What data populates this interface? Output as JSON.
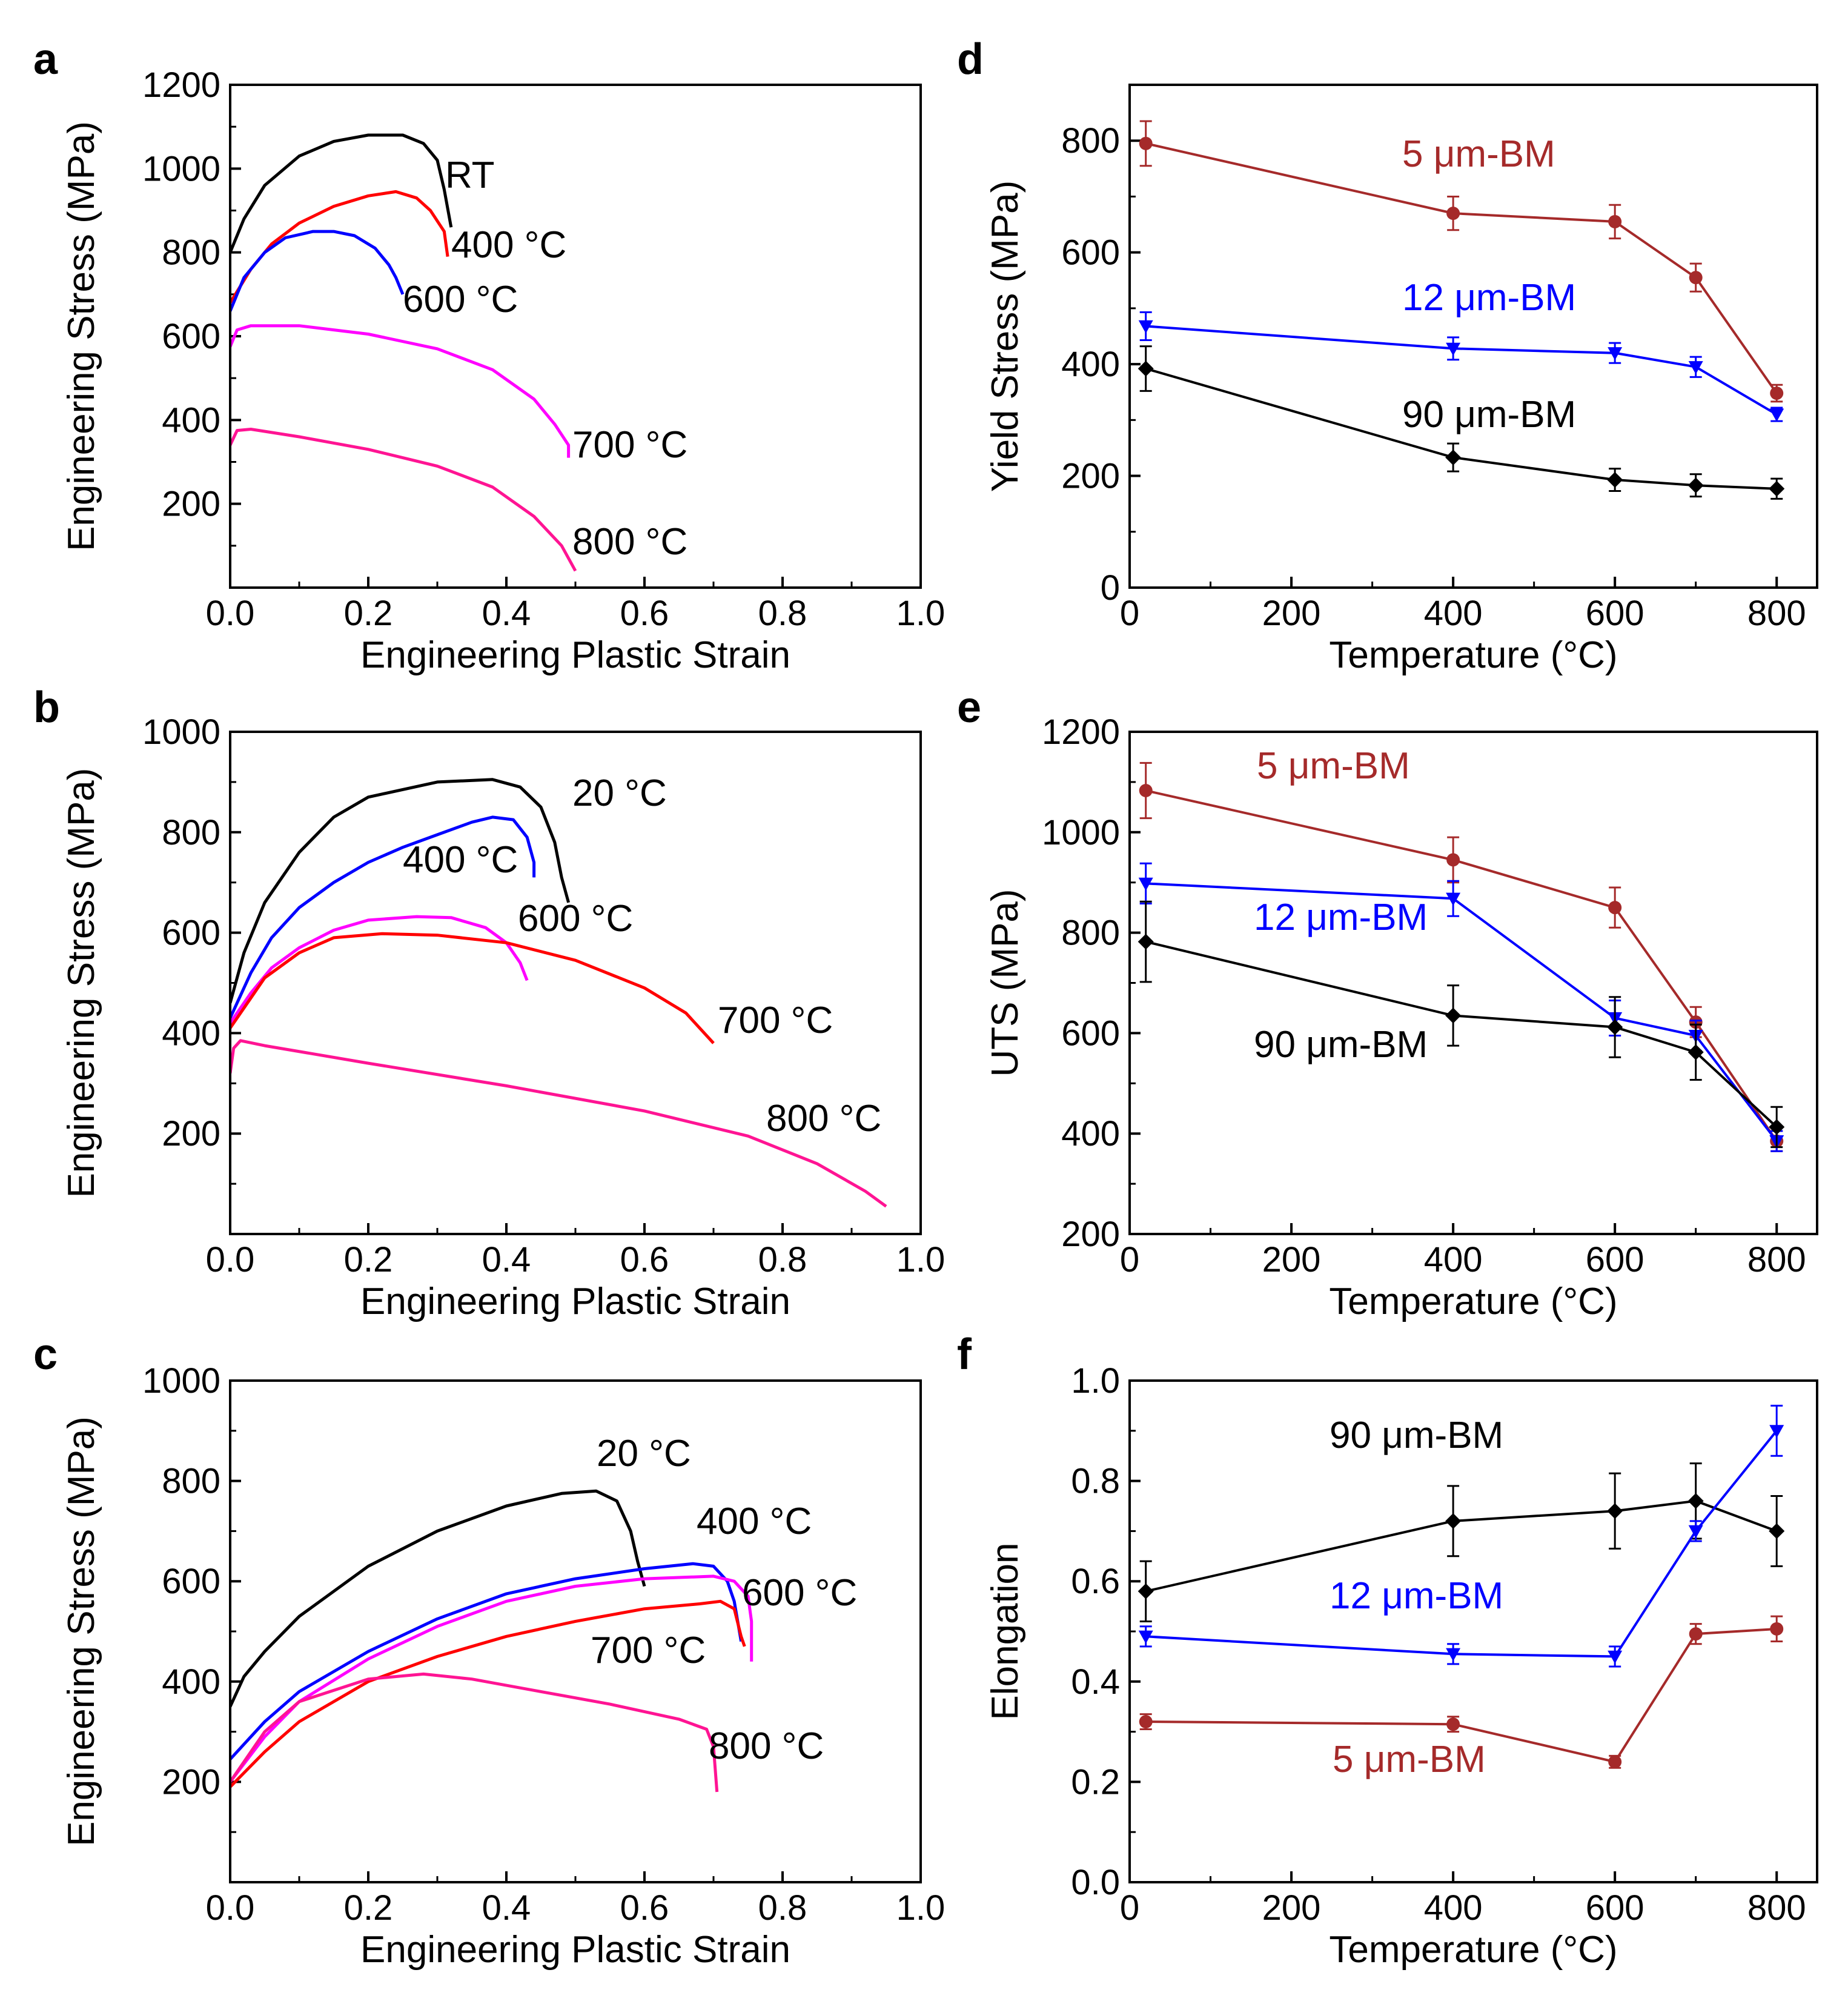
{
  "chart_data": [
    {
      "panel": "a",
      "type": "line",
      "xlabel": "Engineering Plastic Strain",
      "ylabel": "Engineering Stress (MPa)",
      "xlim": [
        0,
        1.0
      ],
      "ylim": [
        0,
        1200
      ],
      "xticks": [
        "0.0",
        "0.2",
        "0.4",
        "0.6",
        "0.8",
        "1.0"
      ],
      "yticks": [
        "200",
        "400",
        "600",
        "800",
        "1000",
        "1200"
      ],
      "series": [
        {
          "name": "RT",
          "color": "#000000",
          "points": [
            [
              0,
              800
            ],
            [
              0.02,
              880
            ],
            [
              0.05,
              960
            ],
            [
              0.1,
              1030
            ],
            [
              0.15,
              1065
            ],
            [
              0.2,
              1080
            ],
            [
              0.25,
              1080
            ],
            [
              0.28,
              1060
            ],
            [
              0.3,
              1020
            ],
            [
              0.31,
              950
            ],
            [
              0.32,
              860
            ]
          ]
        },
        {
          "name": "400 °C",
          "color": "#ff0000",
          "points": [
            [
              0,
              680
            ],
            [
              0.03,
              760
            ],
            [
              0.06,
              820
            ],
            [
              0.1,
              870
            ],
            [
              0.15,
              910
            ],
            [
              0.2,
              935
            ],
            [
              0.24,
              945
            ],
            [
              0.27,
              930
            ],
            [
              0.29,
              900
            ],
            [
              0.31,
              850
            ],
            [
              0.315,
              790
            ]
          ]
        },
        {
          "name": "600 °C",
          "color": "#0000ff",
          "points": [
            [
              0,
              660
            ],
            [
              0.02,
              740
            ],
            [
              0.05,
              800
            ],
            [
              0.08,
              835
            ],
            [
              0.12,
              850
            ],
            [
              0.15,
              850
            ],
            [
              0.18,
              840
            ],
            [
              0.21,
              810
            ],
            [
              0.23,
              770
            ],
            [
              0.24,
              740
            ],
            [
              0.25,
              700
            ]
          ]
        },
        {
          "name": "700 °C",
          "color": "#ff00ff",
          "points": [
            [
              0,
              575
            ],
            [
              0.01,
              615
            ],
            [
              0.03,
              625
            ],
            [
              0.1,
              625
            ],
            [
              0.2,
              605
            ],
            [
              0.3,
              570
            ],
            [
              0.38,
              520
            ],
            [
              0.44,
              450
            ],
            [
              0.47,
              390
            ],
            [
              0.49,
              340
            ],
            [
              0.49,
              310
            ]
          ]
        },
        {
          "name": "800 °C",
          "color": "#ff1493",
          "points": [
            [
              0,
              340
            ],
            [
              0.01,
              375
            ],
            [
              0.03,
              378
            ],
            [
              0.1,
              360
            ],
            [
              0.2,
              330
            ],
            [
              0.3,
              290
            ],
            [
              0.38,
              240
            ],
            [
              0.44,
              170
            ],
            [
              0.48,
              100
            ],
            [
              0.5,
              40
            ]
          ]
        }
      ]
    },
    {
      "panel": "b",
      "type": "line",
      "xlabel": "Engineering Plastic Strain",
      "ylabel": "Engineering Stress (MPa)",
      "xlim": [
        0,
        1.0
      ],
      "ylim": [
        0,
        1000
      ],
      "xticks": [
        "0.0",
        "0.2",
        "0.4",
        "0.6",
        "0.8",
        "1.0"
      ],
      "yticks": [
        "200",
        "400",
        "600",
        "800",
        "1000"
      ],
      "series": [
        {
          "name": "20 °C",
          "color": "#000000",
          "points": [
            [
              0,
              460
            ],
            [
              0.02,
              560
            ],
            [
              0.05,
              660
            ],
            [
              0.1,
              760
            ],
            [
              0.15,
              830
            ],
            [
              0.2,
              870
            ],
            [
              0.3,
              900
            ],
            [
              0.38,
              905
            ],
            [
              0.42,
              890
            ],
            [
              0.45,
              850
            ],
            [
              0.47,
              780
            ],
            [
              0.48,
              710
            ],
            [
              0.49,
              660
            ]
          ]
        },
        {
          "name": "400 °C",
          "color": "#0000ff",
          "points": [
            [
              0,
              430
            ],
            [
              0.03,
              520
            ],
            [
              0.06,
              590
            ],
            [
              0.1,
              650
            ],
            [
              0.15,
              700
            ],
            [
              0.2,
              740
            ],
            [
              0.25,
              770
            ],
            [
              0.3,
              795
            ],
            [
              0.35,
              820
            ],
            [
              0.38,
              830
            ],
            [
              0.41,
              825
            ],
            [
              0.43,
              790
            ],
            [
              0.44,
              740
            ],
            [
              0.44,
              710
            ]
          ]
        },
        {
          "name": "600 °C",
          "color": "#ff00ff",
          "points": [
            [
              0,
              420
            ],
            [
              0.03,
              480
            ],
            [
              0.06,
              530
            ],
            [
              0.1,
              570
            ],
            [
              0.15,
              605
            ],
            [
              0.2,
              625
            ],
            [
              0.27,
              632
            ],
            [
              0.32,
              630
            ],
            [
              0.37,
              610
            ],
            [
              0.4,
              580
            ],
            [
              0.42,
              540
            ],
            [
              0.43,
              505
            ]
          ]
        },
        {
          "name": "700 °C",
          "color": "#ff0000",
          "points": [
            [
              0,
              410
            ],
            [
              0.02,
              450
            ],
            [
              0.05,
              510
            ],
            [
              0.1,
              560
            ],
            [
              0.15,
              590
            ],
            [
              0.22,
              598
            ],
            [
              0.3,
              595
            ],
            [
              0.4,
              580
            ],
            [
              0.5,
              545
            ],
            [
              0.6,
              490
            ],
            [
              0.66,
              440
            ],
            [
              0.7,
              380
            ]
          ]
        },
        {
          "name": "800 °C",
          "color": "#ff1493",
          "points": [
            [
              0,
              320
            ],
            [
              0.005,
              370
            ],
            [
              0.015,
              385
            ],
            [
              0.05,
              375
            ],
            [
              0.2,
              340
            ],
            [
              0.4,
              295
            ],
            [
              0.6,
              245
            ],
            [
              0.75,
              195
            ],
            [
              0.85,
              140
            ],
            [
              0.92,
              85
            ],
            [
              0.95,
              55
            ]
          ]
        }
      ]
    },
    {
      "panel": "c",
      "type": "line",
      "xlabel": "Engineering Plastic Strain",
      "ylabel": "Engineering Stress (MPa)",
      "xlim": [
        0,
        1.0
      ],
      "ylim": [
        0,
        1000
      ],
      "xticks": [
        "0.0",
        "0.2",
        "0.4",
        "0.6",
        "0.8",
        "1.0"
      ],
      "yticks": [
        "200",
        "400",
        "600",
        "800",
        "1000"
      ],
      "series": [
        {
          "name": "20 °C",
          "color": "#000000",
          "points": [
            [
              0,
              350
            ],
            [
              0.02,
              410
            ],
            [
              0.05,
              460
            ],
            [
              0.1,
              530
            ],
            [
              0.2,
              630
            ],
            [
              0.3,
              700
            ],
            [
              0.4,
              750
            ],
            [
              0.48,
              775
            ],
            [
              0.53,
              780
            ],
            [
              0.56,
              760
            ],
            [
              0.58,
              700
            ],
            [
              0.59,
              640
            ],
            [
              0.6,
              590
            ]
          ]
        },
        {
          "name": "400 °C",
          "color": "#0000ff",
          "points": [
            [
              0,
              245
            ],
            [
              0.05,
              320
            ],
            [
              0.1,
              380
            ],
            [
              0.2,
              460
            ],
            [
              0.3,
              525
            ],
            [
              0.4,
              575
            ],
            [
              0.5,
              605
            ],
            [
              0.6,
              625
            ],
            [
              0.67,
              635
            ],
            [
              0.7,
              630
            ],
            [
              0.72,
              600
            ],
            [
              0.73,
              560
            ],
            [
              0.74,
              480
            ]
          ]
        },
        {
          "name": "600 °C",
          "color": "#ff00ff",
          "points": [
            [
              0,
              200
            ],
            [
              0.05,
              290
            ],
            [
              0.1,
              360
            ],
            [
              0.2,
              445
            ],
            [
              0.3,
              510
            ],
            [
              0.4,
              560
            ],
            [
              0.5,
              590
            ],
            [
              0.6,
              605
            ],
            [
              0.7,
              610
            ],
            [
              0.73,
              600
            ],
            [
              0.75,
              570
            ],
            [
              0.755,
              520
            ],
            [
              0.755,
              440
            ]
          ]
        },
        {
          "name": "700 °C",
          "color": "#ff0000",
          "points": [
            [
              0,
              190
            ],
            [
              0.05,
              260
            ],
            [
              0.1,
              320
            ],
            [
              0.2,
              400
            ],
            [
              0.3,
              450
            ],
            [
              0.4,
              490
            ],
            [
              0.5,
              520
            ],
            [
              0.6,
              545
            ],
            [
              0.68,
              555
            ],
            [
              0.71,
              560
            ],
            [
              0.73,
              545
            ],
            [
              0.74,
              490
            ],
            [
              0.745,
              470
            ]
          ]
        },
        {
          "name": "800 °C",
          "color": "#ff1493",
          "points": [
            [
              0,
              200
            ],
            [
              0.05,
              300
            ],
            [
              0.1,
              360
            ],
            [
              0.2,
              405
            ],
            [
              0.28,
              415
            ],
            [
              0.35,
              405
            ],
            [
              0.45,
              380
            ],
            [
              0.55,
              355
            ],
            [
              0.65,
              325
            ],
            [
              0.69,
              305
            ],
            [
              0.7,
              270
            ],
            [
              0.705,
              180
            ]
          ]
        }
      ]
    },
    {
      "panel": "d",
      "type": "line",
      "xlabel": "Temperature (°C)",
      "ylabel": "Yield Stress (MPa)",
      "xlim": [
        0,
        850
      ],
      "ylim": [
        0,
        900
      ],
      "xticks": [
        "0",
        "200",
        "400",
        "600",
        "800"
      ],
      "yticks": [
        "0",
        "200",
        "400",
        "600",
        "800"
      ],
      "x": [
        20,
        400,
        600,
        700,
        800
      ],
      "series": [
        {
          "name": "5 μm-BM",
          "color": "#a52a2a",
          "marker": "circle",
          "values": [
            795,
            670,
            655,
            555,
            348
          ],
          "errors": [
            40,
            30,
            30,
            25,
            15
          ]
        },
        {
          "name": "12 μm-BM",
          "color": "#0000ff",
          "marker": "triangle-down",
          "values": [
            468,
            428,
            420,
            395,
            310
          ],
          "errors": [
            25,
            20,
            18,
            18,
            12
          ]
        },
        {
          "name": "90 μm-BM",
          "color": "#000000",
          "marker": "diamond",
          "values": [
            392,
            233,
            193,
            183,
            177
          ],
          "errors": [
            40,
            25,
            20,
            20,
            18
          ]
        }
      ]
    },
    {
      "panel": "e",
      "type": "line",
      "xlabel": "Temperature (°C)",
      "ylabel": "UTS (MPa)",
      "xlim": [
        0,
        850
      ],
      "ylim": [
        200,
        1200
      ],
      "xticks": [
        "0",
        "200",
        "400",
        "600",
        "800"
      ],
      "yticks": [
        "200",
        "400",
        "600",
        "800",
        "1000",
        "1200"
      ],
      "x": [
        20,
        400,
        600,
        700,
        800
      ],
      "series": [
        {
          "name": "5 μm-BM",
          "color": "#a52a2a",
          "marker": "circle",
          "values": [
            1083,
            945,
            850,
            622,
            385
          ],
          "errors": [
            55,
            45,
            40,
            30,
            20
          ]
        },
        {
          "name": "12 μm-BM",
          "color": "#0000ff",
          "marker": "triangle-down",
          "values": [
            898,
            868,
            630,
            595,
            385
          ],
          "errors": [
            40,
            35,
            35,
            30,
            20
          ]
        },
        {
          "name": "90 μm-BM",
          "color": "#000000",
          "marker": "diamond",
          "values": [
            782,
            635,
            612,
            562,
            413
          ],
          "errors": [
            80,
            60,
            60,
            55,
            40
          ]
        }
      ]
    },
    {
      "panel": "f",
      "type": "line",
      "xlabel": "Temperature (°C)",
      "ylabel": "Elongation",
      "xlim": [
        0,
        850
      ],
      "ylim": [
        0,
        1.0
      ],
      "xticks": [
        "0",
        "200",
        "400",
        "600",
        "800"
      ],
      "yticks": [
        "0.0",
        "0.2",
        "0.4",
        "0.6",
        "0.8",
        "1.0"
      ],
      "x": [
        20,
        400,
        600,
        700,
        800
      ],
      "series": [
        {
          "name": "90 μm-BM",
          "color": "#000000",
          "marker": "diamond",
          "values": [
            0.58,
            0.72,
            0.74,
            0.76,
            0.7
          ],
          "errors": [
            0.06,
            0.07,
            0.075,
            0.075,
            0.07
          ]
        },
        {
          "name": "12 μm-BM",
          "color": "#0000ff",
          "marker": "triangle-down",
          "values": [
            0.49,
            0.455,
            0.45,
            0.7,
            0.9
          ],
          "errors": [
            0.02,
            0.02,
            0.02,
            0.02,
            0.05
          ]
        },
        {
          "name": "5 μm-BM",
          "color": "#a52a2a",
          "marker": "circle",
          "values": [
            0.32,
            0.315,
            0.24,
            0.495,
            0.505
          ],
          "errors": [
            0.015,
            0.015,
            0.012,
            0.02,
            0.025
          ]
        }
      ]
    }
  ]
}
